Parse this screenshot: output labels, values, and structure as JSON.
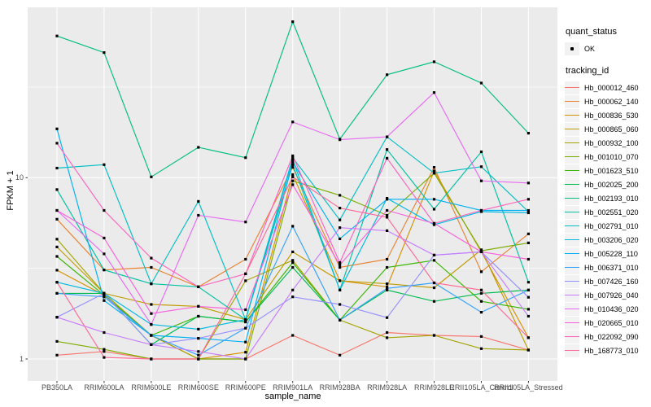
{
  "y_axis": {
    "title": "FPKM + 1"
  },
  "x_axis": {
    "title": "sample_name"
  },
  "legend": {
    "quant_status_title": "quant_status",
    "quant_status_item": "OK",
    "tracking_id_title": "tracking_id"
  },
  "style": {
    "panel_bg": "#EBEBEB",
    "grid_color": "#FFFFFF",
    "point_color": "#000000",
    "tick_color": "#333333",
    "axis_text_color": "#4D4D4D"
  },
  "chart_data": {
    "type": "line",
    "title": "",
    "xlabel": "sample_name",
    "ylabel": "FPKM + 1",
    "yscale": "log10",
    "ylim": [
      0.76,
      87
    ],
    "grid": true,
    "legend_position": "right",
    "yticks": [
      {
        "label": "1",
        "value": 1
      },
      {
        "label": "10",
        "value": 10
      }
    ],
    "x": [
      "PB350LA",
      "RRIM600LA",
      "RRIM600LE",
      "RRIM600SE",
      "RRIM600PE",
      "RRIM901LA",
      "RRIM928BA",
      "RRIM928LA",
      "RRIM928LE",
      "RRII105LA_Control",
      "RRII105LA_Stressed"
    ],
    "quant_status": "OK",
    "series": [
      {
        "name": "Hb_000012_460",
        "color": "#F8766D",
        "values": [
          1.05,
          1.1,
          1.0,
          1.0,
          1.0,
          1.35,
          1.05,
          1.4,
          1.35,
          1.33,
          1.12
        ]
      },
      {
        "name": "Hb_000062_140",
        "color": "#EA8331",
        "values": [
          5.9,
          3.1,
          3.2,
          2.5,
          3.55,
          11.4,
          3.2,
          3.55,
          11.4,
          3.03,
          4.9
        ]
      },
      {
        "name": "Hb_000836_530",
        "color": "#D89000",
        "values": [
          3.09,
          2.25,
          1.35,
          1.0,
          1.09,
          10.4,
          2.7,
          2.5,
          10.9,
          3.9,
          1.31
        ]
      },
      {
        "name": "Hb_000865_060",
        "color": "#C09B00",
        "values": [
          4.15,
          2.3,
          2.0,
          1.95,
          1.65,
          3.9,
          2.7,
          2.6,
          2.47,
          4.0,
          1.12
        ]
      },
      {
        "name": "Hb_000932_100",
        "color": "#A3A500",
        "values": [
          4.58,
          2.3,
          1.35,
          1.0,
          2.7,
          3.5,
          1.64,
          1.31,
          1.35,
          1.14,
          1.12
        ]
      },
      {
        "name": "Hb_001010_070",
        "color": "#7CAE00",
        "values": [
          1.25,
          1.13,
          1.0,
          1.0,
          1.0,
          9.6,
          8.0,
          6.2,
          10.6,
          3.95,
          4.37
        ]
      },
      {
        "name": "Hb_001623_510",
        "color": "#39B600",
        "values": [
          3.68,
          2.25,
          1.35,
          1.72,
          1.6,
          3.4,
          1.64,
          3.2,
          3.5,
          2.08,
          1.88
        ]
      },
      {
        "name": "Hb_002025_200",
        "color": "#00BB4E",
        "values": [
          2.3,
          2.3,
          1.2,
          1.72,
          1.6,
          3.2,
          1.64,
          2.4,
          2.08,
          2.3,
          2.4
        ]
      },
      {
        "name": "Hb_002193_010",
        "color": "#00BF7D",
        "values": [
          60.5,
          49.0,
          10.1,
          14.7,
          12.9,
          72.5,
          16.3,
          37.0,
          43.6,
          33.3,
          17.6
        ]
      },
      {
        "name": "Hb_002551_020",
        "color": "#00C1A3",
        "values": [
          8.6,
          3.1,
          2.6,
          2.5,
          1.65,
          11.8,
          2.4,
          14.3,
          6.7,
          13.9,
          2.65
        ]
      },
      {
        "name": "Hb_002791_010",
        "color": "#00BFC4",
        "values": [
          11.3,
          11.8,
          2.6,
          7.4,
          1.65,
          12.9,
          5.85,
          16.8,
          10.6,
          11.5,
          6.5
        ]
      },
      {
        "name": "Hb_003206_020",
        "color": "#00BAE0",
        "values": [
          2.65,
          2.3,
          1.55,
          1.46,
          1.65,
          12.6,
          2.4,
          7.7,
          5.5,
          6.5,
          6.4
        ]
      },
      {
        "name": "Hb_005228_110",
        "color": "#00B0F6",
        "values": [
          18.6,
          2.1,
          1.35,
          1.3,
          1.24,
          12.2,
          4.6,
          7.6,
          7.6,
          6.6,
          6.6
        ]
      },
      {
        "name": "Hb_006371_010",
        "color": "#35A2FF",
        "values": [
          2.3,
          2.2,
          1.35,
          1.05,
          1.48,
          5.4,
          1.64,
          2.45,
          2.63,
          1.81,
          2.4
        ]
      },
      {
        "name": "Hb_007426_160",
        "color": "#9590FF",
        "values": [
          1.7,
          2.3,
          1.2,
          1.3,
          1.48,
          2.2,
          2.0,
          1.69,
          3.74,
          3.9,
          2.19
        ]
      },
      {
        "name": "Hb_007926_040",
        "color": "#C77CFF",
        "values": [
          1.7,
          1.4,
          1.2,
          1.1,
          1.0,
          2.4,
          5.3,
          5.1,
          3.74,
          3.9,
          1.72
        ]
      },
      {
        "name": "Hb_010436_020",
        "color": "#E76BF3",
        "values": [
          6.6,
          3.8,
          1.55,
          6.2,
          5.7,
          20.3,
          16.2,
          16.8,
          29.5,
          9.6,
          9.35
        ]
      },
      {
        "name": "Hb_020665_010",
        "color": "#FA62DB",
        "values": [
          6.6,
          4.65,
          1.78,
          1.95,
          1.87,
          9.15,
          3.3,
          6.6,
          5.6,
          3.9,
          3.55
        ]
      },
      {
        "name": "Hb_022092_090",
        "color": "#FF62BC",
        "values": [
          15.5,
          6.6,
          3.6,
          2.5,
          2.95,
          13.2,
          3.4,
          12.8,
          5.6,
          6.6,
          7.6
        ]
      },
      {
        "name": "Hb_168773_010",
        "color": "#FF6A98",
        "values": [
          2.65,
          1.02,
          1.0,
          1.0,
          2.95,
          10.1,
          6.8,
          6.05,
          2.63,
          2.4,
          1.31
        ]
      }
    ]
  }
}
